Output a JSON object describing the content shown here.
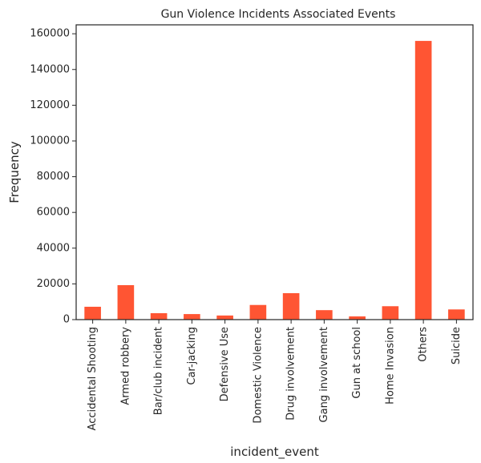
{
  "chart_data": {
    "type": "bar",
    "title": "Gun Violence Incidents Associated Events",
    "xlabel": "incident_event",
    "ylabel": "Frequency",
    "ylim": [
      0,
      165000
    ],
    "yticks": [
      0,
      20000,
      40000,
      60000,
      80000,
      100000,
      120000,
      140000,
      160000
    ],
    "categories": [
      "Accidental Shooting",
      "Armed robbery",
      "Bar/club incident",
      "Car-jacking",
      "Defensive Use",
      "Domestic Violence",
      "Drug involvement",
      "Gang involvement",
      "Gun at school",
      "Home Invasion",
      "Others",
      "Suicide"
    ],
    "values": [
      7200,
      19300,
      3600,
      3100,
      2300,
      8200,
      14800,
      5300,
      1800,
      7500,
      156000,
      5700
    ],
    "bar_color": "#ff5533",
    "grid": false
  }
}
